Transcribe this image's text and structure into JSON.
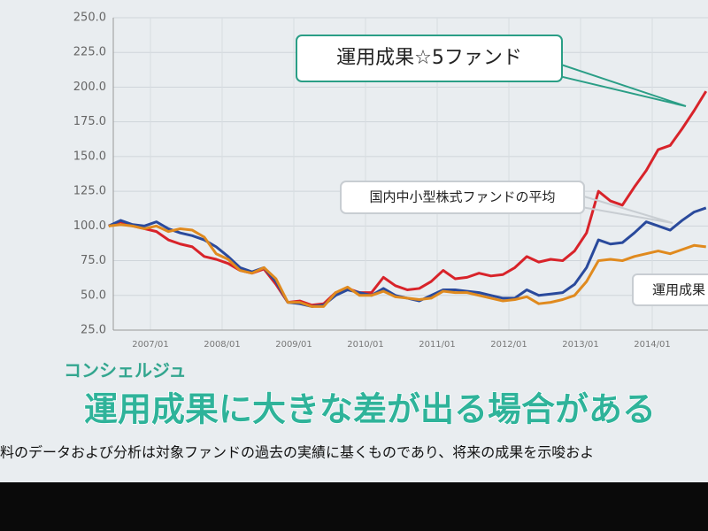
{
  "chart_data": {
    "type": "line",
    "x": [
      "2006/06",
      "2006/08",
      "2006/10",
      "2006/12",
      "2007/02",
      "2007/04",
      "2007/06",
      "2007/08",
      "2007/10",
      "2007/12",
      "2008/02",
      "2008/04",
      "2008/06",
      "2008/08",
      "2008/10",
      "2008/12",
      "2009/02",
      "2009/04",
      "2009/06",
      "2009/08",
      "2009/10",
      "2009/12",
      "2010/02",
      "2010/04",
      "2010/06",
      "2010/08",
      "2010/10",
      "2010/12",
      "2011/02",
      "2011/04",
      "2011/06",
      "2011/08",
      "2011/10",
      "2011/12",
      "2012/02",
      "2012/04",
      "2012/06",
      "2012/08",
      "2012/10",
      "2012/12",
      "2013/02",
      "2013/04",
      "2013/06",
      "2013/08",
      "2013/10",
      "2013/12",
      "2014/02",
      "2014/04",
      "2014/06",
      "2014/08",
      "2014/10"
    ],
    "series": [
      {
        "name": "運用成果☆5ファンド",
        "color": "#d8232a",
        "values": [
          100,
          103,
          100,
          98,
          96,
          90,
          87,
          85,
          78,
          76,
          73,
          68,
          66,
          69,
          58,
          45,
          46,
          43,
          44,
          52,
          55,
          52,
          52,
          63,
          57,
          54,
          55,
          60,
          68,
          62,
          63,
          66,
          64,
          65,
          70,
          78,
          74,
          76,
          75,
          82,
          95,
          125,
          118,
          115,
          128,
          140,
          155,
          158,
          170,
          183,
          197
        ]
      },
      {
        "name": "国内中小型株式ファンドの平均",
        "color": "#2a4a9c",
        "values": [
          100,
          104,
          101,
          100,
          103,
          98,
          95,
          93,
          90,
          85,
          78,
          70,
          67,
          70,
          60,
          45,
          44,
          42,
          43,
          50,
          54,
          52,
          50,
          55,
          50,
          48,
          46,
          50,
          54,
          54,
          53,
          52,
          50,
          48,
          48,
          54,
          50,
          51,
          52,
          58,
          70,
          90,
          87,
          88,
          95,
          103,
          100,
          97,
          104,
          110,
          113
        ]
      },
      {
        "name": "運用成果",
        "color": "#e08a1e",
        "values": [
          100,
          101,
          100,
          98,
          100,
          96,
          98,
          97,
          92,
          80,
          76,
          68,
          66,
          70,
          62,
          45,
          45,
          42,
          42,
          52,
          56,
          50,
          50,
          53,
          49,
          48,
          47,
          48,
          53,
          52,
          52,
          50,
          48,
          46,
          47,
          49,
          44,
          45,
          47,
          50,
          60,
          75,
          76,
          75,
          78,
          80,
          82,
          80,
          83,
          86,
          85
        ]
      }
    ],
    "xticks": [
      "2007/01",
      "2008/01",
      "2009/01",
      "2010/01",
      "2011/01",
      "2012/01",
      "2013/01",
      "2014/01"
    ],
    "ylim": [
      25,
      250
    ],
    "yticks": [
      {
        "value": 250,
        "label": "250.0"
      },
      {
        "value": 225,
        "label": "225.0"
      },
      {
        "value": 200,
        "label": "200.0"
      },
      {
        "value": 175,
        "label": "175.0"
      },
      {
        "value": 150,
        "label": "150.0"
      },
      {
        "value": 125,
        "label": "125.0"
      },
      {
        "value": 100,
        "label": "100.0"
      },
      {
        "value": 75,
        "label": "75.0"
      },
      {
        "value": 50,
        "label": "50.0"
      },
      {
        "value": 25,
        "label": "25.0"
      }
    ],
    "grid": true
  },
  "brand": "コンシェルジュ",
  "headline": "運用成果に大きな差が出る場合がある",
  "disclaimer": "料のデータおよび分析は対象ファンドの過去の実績に基くものであり、将来の成果を示唆およ"
}
